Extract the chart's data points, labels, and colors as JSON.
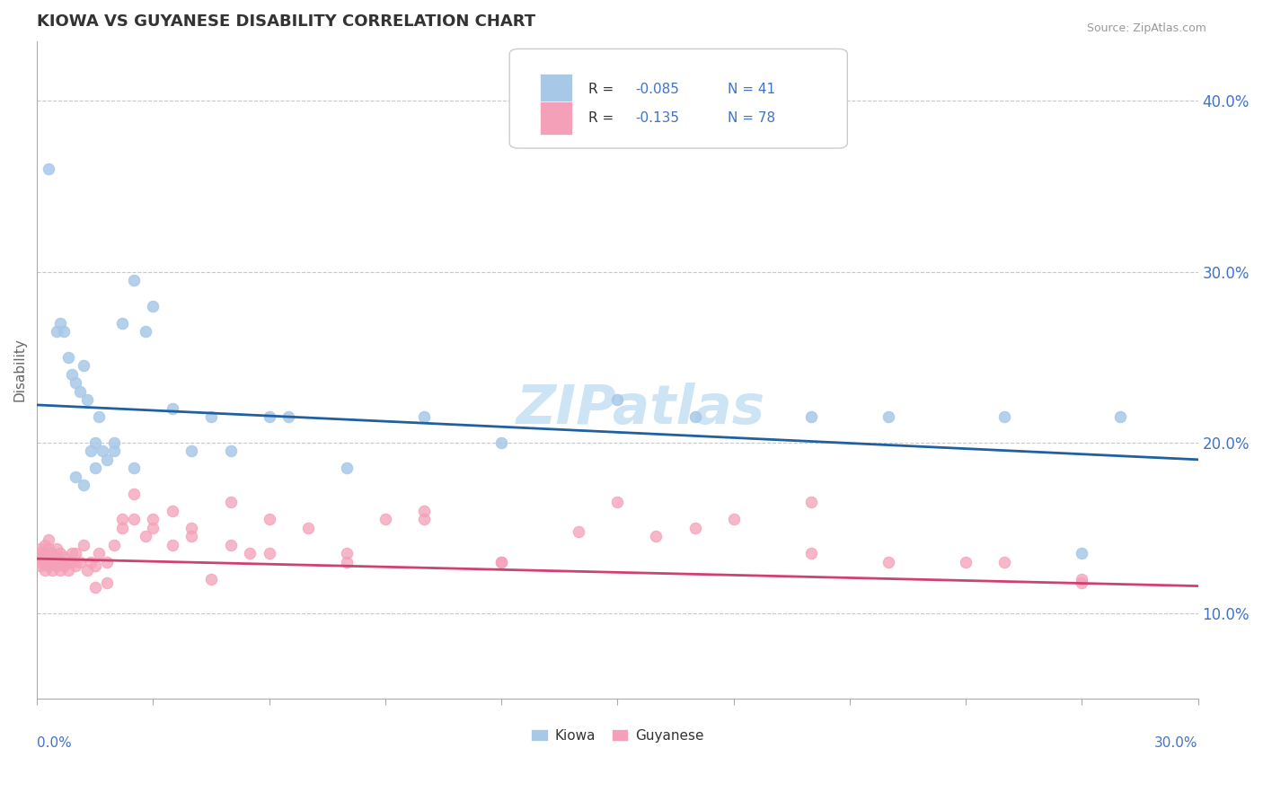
{
  "title": "KIOWA VS GUYANESE DISABILITY CORRELATION CHART",
  "source": "Source: ZipAtlas.com",
  "ylabel": "Disability",
  "xlim": [
    0.0,
    0.3
  ],
  "ylim": [
    0.05,
    0.435
  ],
  "yticks": [
    0.1,
    0.2,
    0.3,
    0.4
  ],
  "ytick_labels": [
    "10.0%",
    "20.0%",
    "30.0%",
    "40.0%"
  ],
  "kiowa_color": "#a8c8e8",
  "guyanese_color": "#f4a0b8",
  "kiowa_line_color": "#2060a0",
  "guyanese_line_color": "#d04070",
  "watermark": "ZIPatlas",
  "background_color": "#ffffff",
  "grid_color": "#c8c8c8",
  "kiowa_line_y0": 0.222,
  "kiowa_line_y1": 0.19,
  "guyanese_line_y0": 0.132,
  "guyanese_line_y1": 0.116,
  "kiowa_x": [
    0.003,
    0.005,
    0.006,
    0.007,
    0.008,
    0.009,
    0.01,
    0.011,
    0.012,
    0.013,
    0.014,
    0.015,
    0.016,
    0.017,
    0.018,
    0.02,
    0.022,
    0.025,
    0.028,
    0.03,
    0.035,
    0.04,
    0.045,
    0.05,
    0.06,
    0.065,
    0.08,
    0.1,
    0.12,
    0.15,
    0.17,
    0.2,
    0.22,
    0.25,
    0.27,
    0.28,
    0.01,
    0.012,
    0.015,
    0.02,
    0.025
  ],
  "kiowa_y": [
    0.36,
    0.265,
    0.27,
    0.265,
    0.25,
    0.24,
    0.235,
    0.23,
    0.245,
    0.225,
    0.195,
    0.2,
    0.215,
    0.195,
    0.19,
    0.2,
    0.27,
    0.295,
    0.265,
    0.28,
    0.22,
    0.195,
    0.215,
    0.195,
    0.215,
    0.215,
    0.185,
    0.215,
    0.2,
    0.225,
    0.215,
    0.215,
    0.215,
    0.215,
    0.135,
    0.215,
    0.18,
    0.175,
    0.185,
    0.195,
    0.185
  ],
  "guyanese_x": [
    0.001,
    0.001,
    0.001,
    0.001,
    0.001,
    0.002,
    0.002,
    0.002,
    0.002,
    0.003,
    0.003,
    0.003,
    0.003,
    0.004,
    0.004,
    0.004,
    0.005,
    0.005,
    0.005,
    0.006,
    0.006,
    0.006,
    0.007,
    0.007,
    0.008,
    0.008,
    0.009,
    0.009,
    0.01,
    0.01,
    0.011,
    0.012,
    0.013,
    0.014,
    0.015,
    0.016,
    0.018,
    0.02,
    0.022,
    0.025,
    0.028,
    0.03,
    0.035,
    0.04,
    0.05,
    0.06,
    0.08,
    0.1,
    0.12,
    0.14,
    0.16,
    0.18,
    0.2,
    0.22,
    0.25,
    0.27,
    0.015,
    0.018,
    0.022,
    0.025,
    0.03,
    0.035,
    0.04,
    0.045,
    0.05,
    0.055,
    0.06,
    0.07,
    0.08,
    0.09,
    0.1,
    0.12,
    0.15,
    0.17,
    0.2,
    0.24,
    0.27
  ],
  "guyanese_y": [
    0.13,
    0.135,
    0.128,
    0.132,
    0.138,
    0.125,
    0.13,
    0.135,
    0.14,
    0.128,
    0.133,
    0.138,
    0.143,
    0.13,
    0.135,
    0.125,
    0.132,
    0.128,
    0.138,
    0.13,
    0.125,
    0.135,
    0.128,
    0.133,
    0.13,
    0.125,
    0.135,
    0.13,
    0.128,
    0.135,
    0.13,
    0.14,
    0.125,
    0.13,
    0.128,
    0.135,
    0.13,
    0.14,
    0.155,
    0.155,
    0.145,
    0.15,
    0.16,
    0.145,
    0.165,
    0.135,
    0.13,
    0.155,
    0.13,
    0.148,
    0.145,
    0.155,
    0.165,
    0.13,
    0.13,
    0.118,
    0.115,
    0.118,
    0.15,
    0.17,
    0.155,
    0.14,
    0.15,
    0.12,
    0.14,
    0.135,
    0.155,
    0.15,
    0.135,
    0.155,
    0.16,
    0.13,
    0.165,
    0.15,
    0.135,
    0.13,
    0.12
  ]
}
